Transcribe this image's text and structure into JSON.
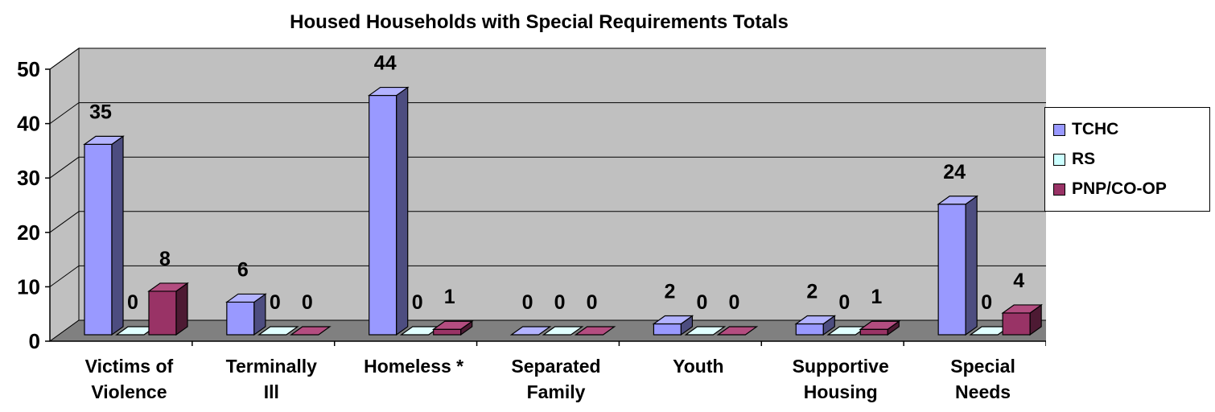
{
  "chart_data": {
    "type": "bar",
    "title": "Housed Households with Special Requirements Totals",
    "categories": [
      [
        "Victims of",
        "Violence"
      ],
      [
        "Terminally",
        "Ill"
      ],
      [
        "Homeless *"
      ],
      [
        "Separated",
        "Family"
      ],
      [
        "Youth"
      ],
      [
        "Supportive",
        "Housing"
      ],
      [
        "Special",
        "Needs"
      ]
    ],
    "series": [
      {
        "name": "TCHC",
        "values": [
          35,
          6,
          44,
          0,
          2,
          2,
          24
        ],
        "color": "#9999ff",
        "side_color": "#4d4d80",
        "top_color": "#b3b3ff"
      },
      {
        "name": "RS",
        "values": [
          0,
          0,
          0,
          0,
          0,
          0,
          0
        ],
        "color": "#ccffff",
        "side_color": "#668080",
        "top_color": "#e0ffff"
      },
      {
        "name": "PNP/CO-OP",
        "values": [
          8,
          0,
          1,
          0,
          0,
          1,
          4
        ],
        "color": "#993366",
        "side_color": "#4d1a33",
        "top_color": "#b34d80"
      }
    ],
    "data_labels": [
      [
        "35",
        "6",
        "44",
        "0",
        "2",
        "2",
        "24"
      ],
      [
        "0",
        "0",
        "0",
        "0",
        "0",
        "0",
        "0"
      ],
      [
        "8",
        "0",
        "1",
        "0",
        "0",
        "1",
        "4"
      ]
    ],
    "y_ticks": [
      "0",
      "10",
      "20",
      "30",
      "40",
      "50"
    ],
    "ylim": [
      0,
      50
    ],
    "grid": true,
    "legend_position": "right",
    "wall_color": "#c0c0c0",
    "floor_color": "#808080"
  }
}
